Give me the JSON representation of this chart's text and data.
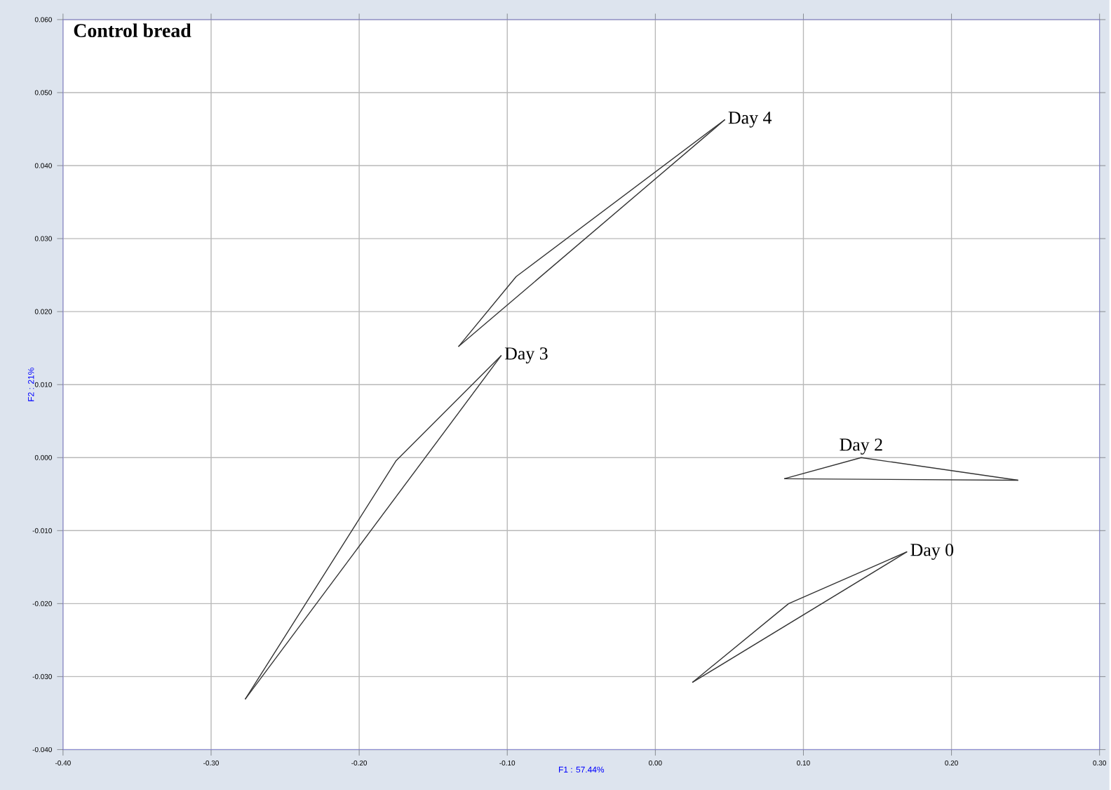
{
  "chart_data": {
    "type": "line",
    "title": "Control bread",
    "xlabel": "F1 : 57.44%",
    "ylabel": "F2 : 21%",
    "series": [
      {
        "name": "Day 0",
        "color": "#333333",
        "x": [
          0.025,
          0.09,
          0.17
        ],
        "values": [
          -0.0308,
          -0.02,
          -0.0129
        ]
      },
      {
        "color": "#333333",
        "x": [
          0.025,
          0.17
        ],
        "values": [
          -0.0308,
          -0.0129
        ]
      },
      {
        "name": "Day 2",
        "color": "#333333",
        "x": [
          0.087,
          0.139,
          0.245
        ],
        "values": [
          -0.0029,
          0.0,
          -0.0031
        ]
      },
      {
        "color": "#333333",
        "x": [
          0.087,
          0.245
        ],
        "values": [
          -0.0029,
          -0.0031
        ]
      },
      {
        "name": "Day 3",
        "color": "#333333",
        "x": [
          -0.277,
          -0.175,
          -0.104
        ],
        "values": [
          -0.0331,
          -0.0004,
          0.014
        ]
      },
      {
        "color": "#333333",
        "x": [
          -0.277,
          -0.104
        ],
        "values": [
          -0.0331,
          0.014
        ]
      },
      {
        "name": "Day 4",
        "color": "#333333",
        "x": [
          -0.133,
          -0.094,
          0.047
        ],
        "values": [
          0.0152,
          0.0248,
          0.0463
        ]
      },
      {
        "color": "#333333",
        "x": [
          -0.133,
          0.047
        ],
        "values": [
          0.0152,
          0.0463
        ]
      }
    ],
    "xlim": [
      -0.4,
      0.3
    ],
    "ylim": [
      -0.04,
      0.06
    ],
    "xticks": [
      {
        "value": -0.4,
        "label": "-0.40"
      },
      {
        "value": -0.3,
        "label": "-0.30"
      },
      {
        "value": -0.2,
        "label": "-0.20"
      },
      {
        "value": -0.1,
        "label": "-0.10"
      },
      {
        "value": 0.0,
        "label": "0.00"
      },
      {
        "value": 0.1,
        "label": "0.10"
      },
      {
        "value": 0.2,
        "label": "0.20"
      },
      {
        "value": 0.3,
        "label": "0.30"
      }
    ],
    "yticks": [
      {
        "value": -0.04,
        "label": "-0.040"
      },
      {
        "value": -0.03,
        "label": "-0.030"
      },
      {
        "value": -0.02,
        "label": "-0.020"
      },
      {
        "value": -0.01,
        "label": "-0.010"
      },
      {
        "value": 0.0,
        "label": "0.000"
      },
      {
        "value": 0.01,
        "label": "0.010"
      },
      {
        "value": 0.02,
        "label": "0.020"
      },
      {
        "value": 0.03,
        "label": "0.030"
      },
      {
        "value": 0.04,
        "label": "0.040"
      },
      {
        "value": 0.05,
        "label": "0.050"
      },
      {
        "value": 0.06,
        "label": "0.060"
      }
    ],
    "grid": true,
    "marker": "none",
    "legend": false
  }
}
